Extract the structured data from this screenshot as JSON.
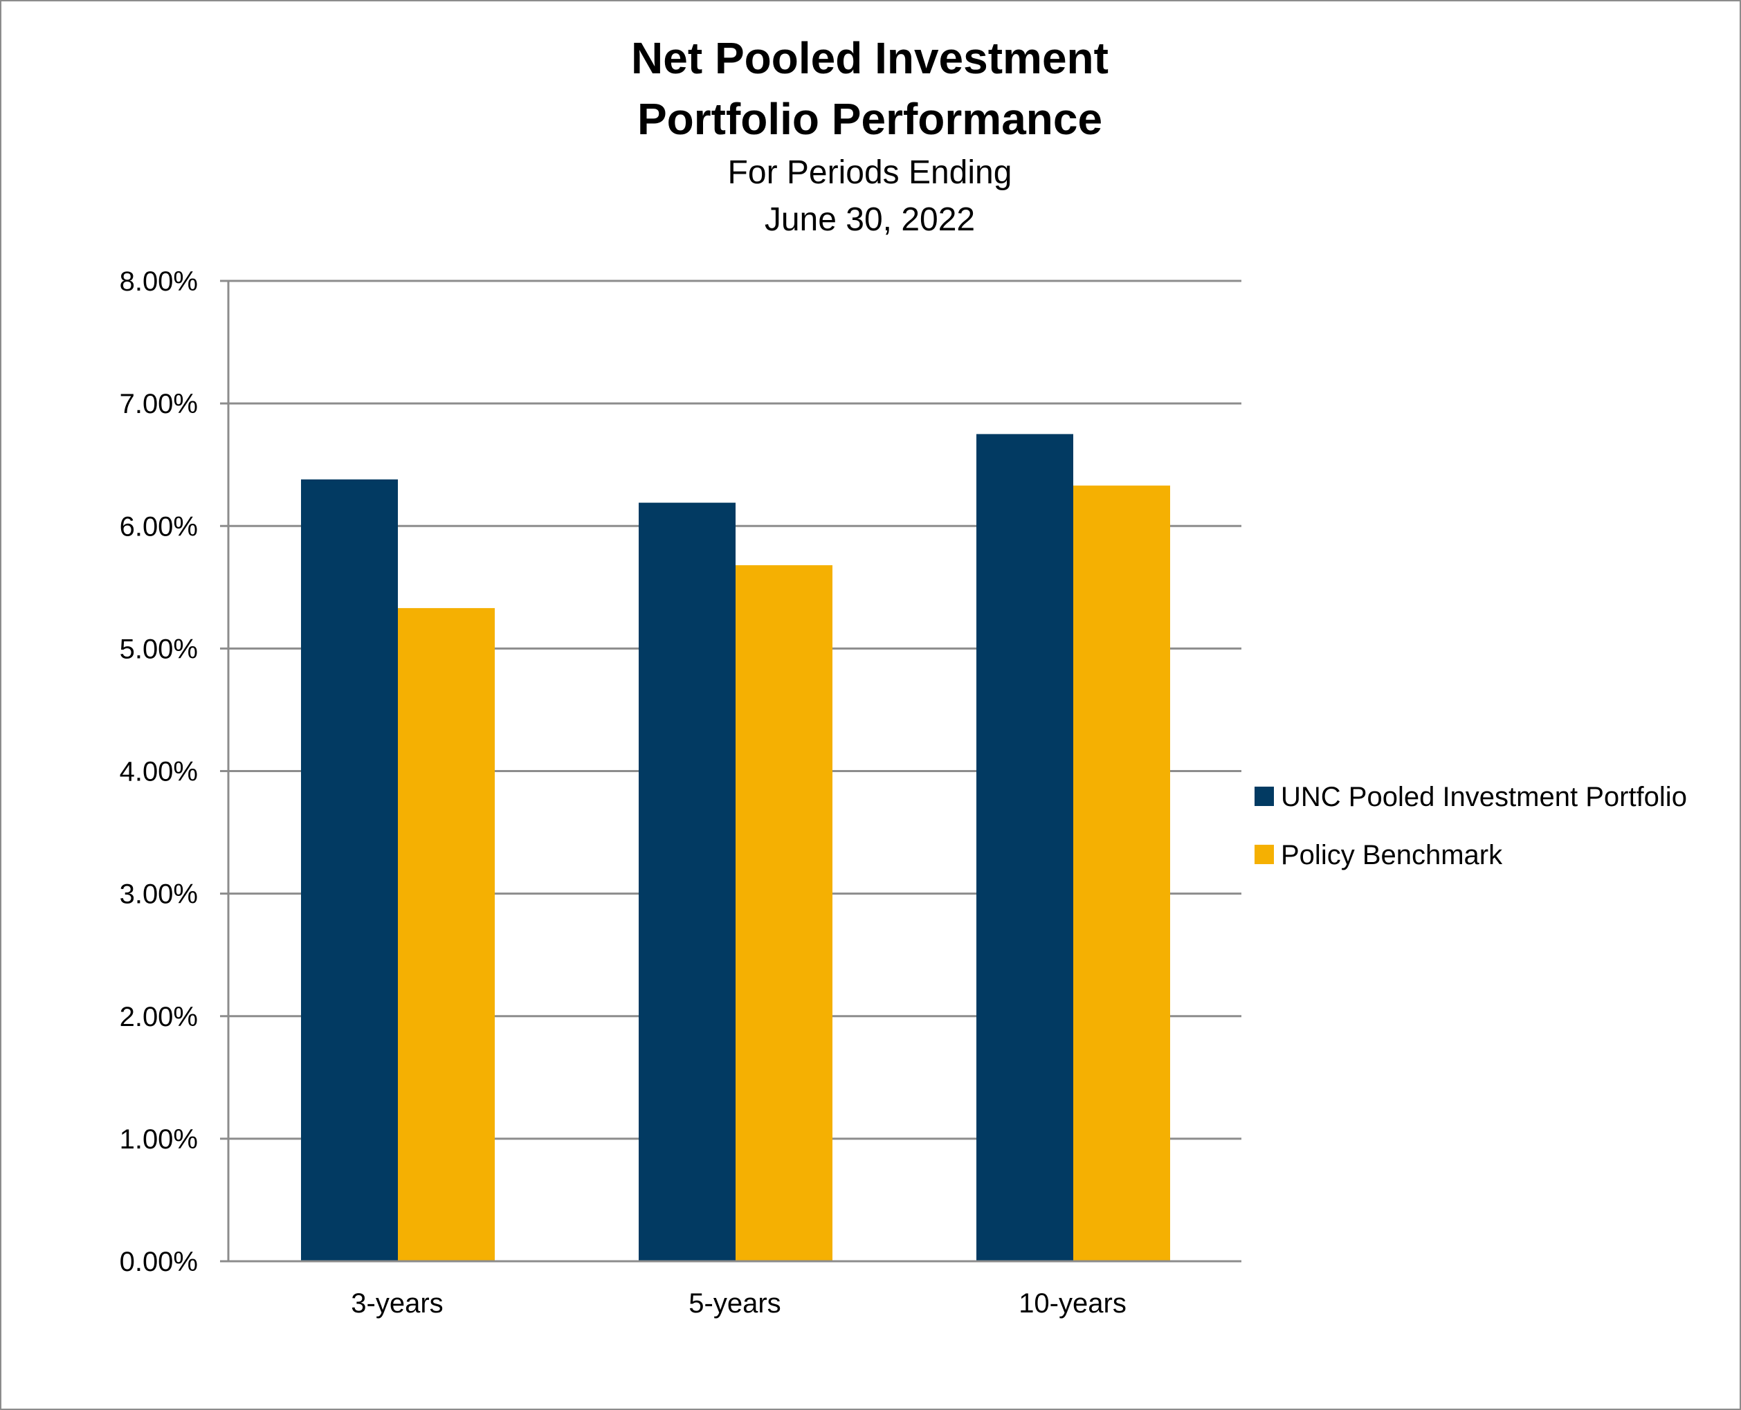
{
  "chart_data": {
    "type": "bar",
    "title_lines": [
      "Net Pooled Investment",
      "Portfolio Performance"
    ],
    "subtitle_lines": [
      "For Periods Ending",
      "June 30, 2022"
    ],
    "categories": [
      "3-years",
      "5-years",
      "10-years"
    ],
    "series": [
      {
        "name": "UNC Pooled Investment Portfolio",
        "color": "#023a62",
        "values": [
          6.38,
          6.19,
          6.75
        ]
      },
      {
        "name": "Policy Benchmark",
        "color": "#f5b002",
        "values": [
          5.33,
          5.68,
          6.33
        ]
      }
    ],
    "ylim": [
      0,
      8
    ],
    "yticks": [
      0,
      1,
      2,
      3,
      4,
      5,
      6,
      7,
      8
    ],
    "ytick_labels": [
      "0.00%",
      "1.00%",
      "2.00%",
      "3.00%",
      "4.00%",
      "5.00%",
      "6.00%",
      "7.00%",
      "8.00%"
    ],
    "xlabel": "",
    "ylabel": "",
    "grid": true,
    "legend_position": "right",
    "gridline_color": "#8c8c8c"
  }
}
